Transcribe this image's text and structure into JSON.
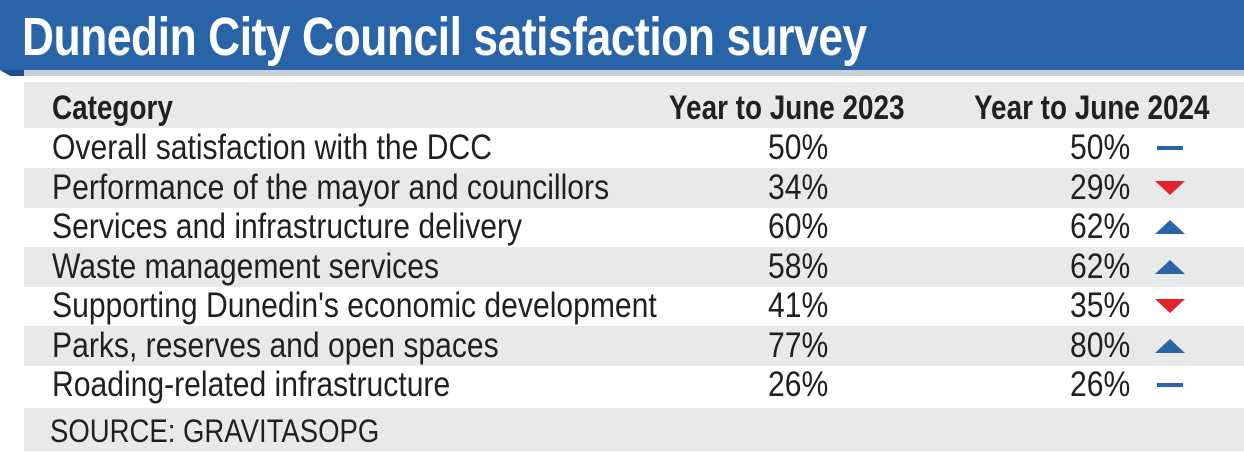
{
  "title": "Dunedin City Council satisfaction survey",
  "source": "SOURCE: GRAVITASOPG",
  "colors": {
    "banner_blue": "#2a64a8",
    "banner_dark": "#1d4f8e",
    "row_shade": "#e9e9ea",
    "up": "#2a64a8",
    "down": "#e3222b",
    "same": "#2a64a8"
  },
  "chart_data": {
    "type": "table",
    "title": "Dunedin City Council satisfaction survey",
    "columns": [
      "Category",
      "Year to June 2023",
      "Year to June 2024"
    ],
    "rows": [
      {
        "category": "Overall satisfaction with the DCC",
        "y2023": "50%",
        "y2024": "50%",
        "trend": "same"
      },
      {
        "category": "Performance of the mayor and councillors",
        "y2023": "34%",
        "y2024": "29%",
        "trend": "down"
      },
      {
        "category": "Services and infrastructure delivery",
        "y2023": "60%",
        "y2024": "62%",
        "trend": "up"
      },
      {
        "category": "Waste management services",
        "y2023": "58%",
        "y2024": "62%",
        "trend": "up"
      },
      {
        "category": "Supporting Dunedin's economic development",
        "y2023": "41%",
        "y2024": "35%",
        "trend": "down"
      },
      {
        "category": "Parks, reserves and open spaces",
        "y2023": "77%",
        "y2024": "80%",
        "trend": "up"
      },
      {
        "category": "Roading-related infrastructure",
        "y2023": "26%",
        "y2024": "26%",
        "trend": "same"
      }
    ],
    "source": "SOURCE: GRAVITASOPG"
  }
}
